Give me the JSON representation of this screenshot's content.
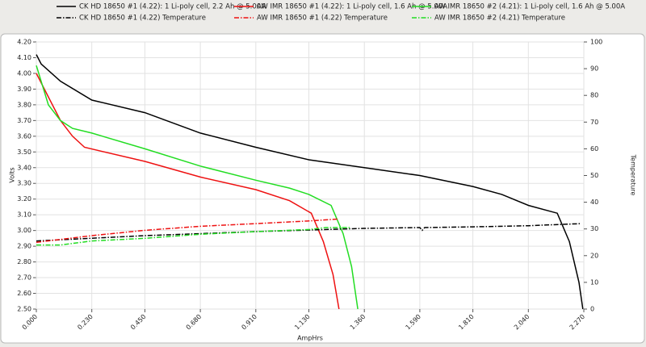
{
  "chart_data": {
    "type": "line",
    "xlabel": "AmpHrs",
    "ylabel": "Volts",
    "y2label": "Temperature",
    "xlim": [
      0,
      2.27
    ],
    "ylim": [
      2.5,
      4.2
    ],
    "y2lim": [
      0,
      100
    ],
    "grid": true,
    "legend": "top",
    "xticks": [
      {
        "value": 0,
        "label": "0.000"
      },
      {
        "value": 0.23,
        "label": "0.230"
      },
      {
        "value": 0.45,
        "label": "0.450"
      },
      {
        "value": 0.68,
        "label": "0.680"
      },
      {
        "value": 0.91,
        "label": "0.910"
      },
      {
        "value": 1.13,
        "label": "1.130"
      },
      {
        "value": 1.36,
        "label": "1.360"
      },
      {
        "value": 1.59,
        "label": "1.590"
      },
      {
        "value": 1.81,
        "label": "1.810"
      },
      {
        "value": 2.04,
        "label": "2.040"
      },
      {
        "value": 2.27,
        "label": "2.270"
      }
    ],
    "yticks": [
      {
        "value": 2.5,
        "label": "2.50"
      },
      {
        "value": 2.6,
        "label": "2.60"
      },
      {
        "value": 2.7,
        "label": "2.70"
      },
      {
        "value": 2.8,
        "label": "2.80"
      },
      {
        "value": 2.9,
        "label": "2.90"
      },
      {
        "value": 3,
        "label": "3.00"
      },
      {
        "value": 3.1,
        "label": "3.10"
      },
      {
        "value": 3.2,
        "label": "3.20"
      },
      {
        "value": 3.3,
        "label": "3.30"
      },
      {
        "value": 3.4,
        "label": "3.40"
      },
      {
        "value": 3.5,
        "label": "3.50"
      },
      {
        "value": 3.6,
        "label": "3.60"
      },
      {
        "value": 3.7,
        "label": "3.70"
      },
      {
        "value": 3.8,
        "label": "3.80"
      },
      {
        "value": 3.9,
        "label": "3.90"
      },
      {
        "value": 4,
        "label": "4.00"
      },
      {
        "value": 4.1,
        "label": "4.10"
      },
      {
        "value": 4.2,
        "label": "4.20"
      }
    ],
    "y2ticks": [
      0,
      10,
      20,
      30,
      40,
      50,
      60,
      70,
      80,
      90,
      100
    ],
    "series": [
      {
        "name": "CK HD 18650 #1 (4.22): 1 Li-poly cell, 2.2 Ah @ 5.00A",
        "color": "#000000",
        "line_style": "solid",
        "x": [
          0,
          0.02,
          0.1,
          0.23,
          0.45,
          0.68,
          0.91,
          1.13,
          1.36,
          1.59,
          1.81,
          1.93,
          2.04,
          2.16,
          2.21,
          2.25,
          2.266
        ],
        "values": [
          4.12,
          4.06,
          3.95,
          3.83,
          3.75,
          3.62,
          3.53,
          3.45,
          3.4,
          3.35,
          3.28,
          3.23,
          3.16,
          3.11,
          2.93,
          2.67,
          2.5
        ]
      },
      {
        "name": "AW IMR 18650 #1 (4.22): 1 Li-poly cell, 1.6 Ah @ 5.00A",
        "color": "#ee1111",
        "line_style": "solid",
        "x": [
          0,
          0.05,
          0.1,
          0.15,
          0.2,
          0.45,
          0.68,
          0.91,
          1.05,
          1.14,
          1.19,
          1.23,
          1.255
        ],
        "values": [
          4.0,
          3.85,
          3.7,
          3.6,
          3.53,
          3.44,
          3.34,
          3.26,
          3.19,
          3.11,
          2.93,
          2.72,
          2.5
        ]
      },
      {
        "name": "AW IMR 18650 #2 (4.21): 1 Li-poly cell, 1.6 Ah @ 5.00A",
        "color": "#22dd22",
        "line_style": "solid",
        "x": [
          0,
          0.05,
          0.1,
          0.15,
          0.23,
          0.45,
          0.68,
          0.91,
          1.05,
          1.13,
          1.222,
          1.272,
          1.307,
          1.333
        ],
        "values": [
          4.05,
          3.8,
          3.7,
          3.65,
          3.62,
          3.52,
          3.41,
          3.32,
          3.27,
          3.23,
          3.16,
          2.98,
          2.77,
          2.5
        ]
      },
      {
        "name": "CK HD 18650 #1 (4.22) Temperature",
        "color": "#000000",
        "line_style": "dashdot",
        "axis": "y2",
        "x": [
          0,
          0.45,
          0.91,
          1.36,
          1.59,
          1.6,
          1.61,
          1.81,
          2.04,
          2.26
        ],
        "values": [
          25.5,
          27.5,
          29,
          30.2,
          30.5,
          29.5,
          30.5,
          30.8,
          31.2,
          32
        ]
      },
      {
        "name": "AW IMR 18650 #1 (4.22) Temperature",
        "color": "#ee1111",
        "line_style": "dashdot",
        "axis": "y2",
        "x": [
          0,
          0.23,
          0.45,
          0.68,
          0.91,
          1.13,
          1.25
        ],
        "values": [
          25,
          27.5,
          29.5,
          31,
          32,
          33,
          33.7
        ]
      },
      {
        "name": "AW IMR 18650 #2 (4.21) Temperature",
        "color": "#22dd22",
        "line_style": "dashdot",
        "axis": "y2",
        "x": [
          0,
          0.1,
          0.23,
          0.45,
          0.68,
          0.91,
          1.13,
          1.2,
          1.3
        ],
        "values": [
          24,
          24,
          25.5,
          26.5,
          28,
          29,
          29.8,
          30.5,
          30.5
        ]
      }
    ]
  }
}
